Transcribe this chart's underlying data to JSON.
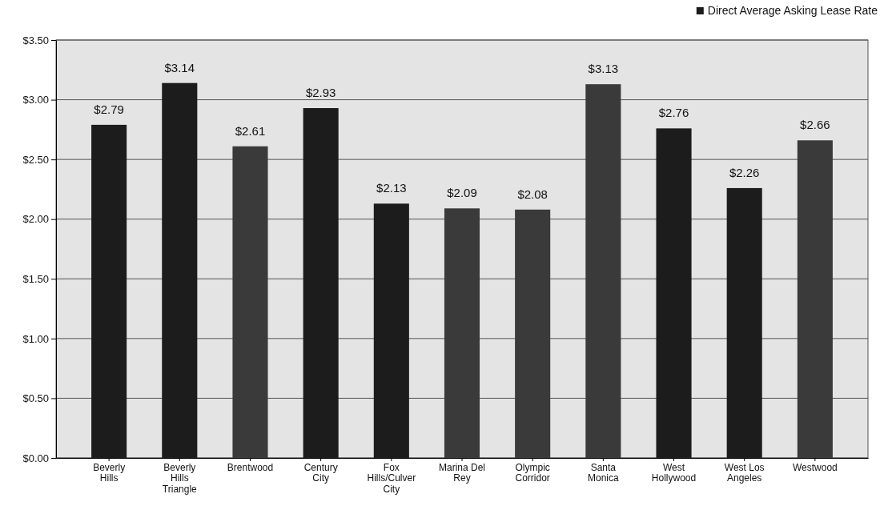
{
  "chart_data": {
    "type": "bar",
    "categories": [
      "Beverly Hills",
      "Beverly Hills Triangle",
      "Brentwood",
      "Century City",
      "Fox Hills/Culver City",
      "Marina Del Rey",
      "Olympic Corridor",
      "Santa Monica",
      "West Hollywood",
      "West Los Angeles",
      "Westwood"
    ],
    "series": [
      {
        "name": "Direct Average Asking Lease Rate",
        "color": "#1c1c1c",
        "colors": [
          "#1c1c1c",
          "#1c1c1c",
          "#3a3a3a",
          "#1c1c1c",
          "#1c1c1c",
          "#3a3a3a",
          "#3a3a3a",
          "#3a3a3a",
          "#1c1c1c",
          "#1c1c1c",
          "#3a3a3a"
        ],
        "values": [
          2.79,
          3.14,
          2.61,
          2.93,
          2.13,
          2.09,
          2.08,
          3.13,
          2.76,
          2.26,
          2.66
        ],
        "value_labels": [
          "$2.79",
          "$3.14",
          "$2.61",
          "$2.93",
          "$2.13",
          "$2.09",
          "$2.08",
          "$3.13",
          "$2.76",
          "$2.26",
          "$2.66"
        ]
      }
    ],
    "ylim": [
      0,
      3.5
    ],
    "yticks": [
      {
        "value": 0,
        "label": "$0.00"
      },
      {
        "value": 0.5,
        "label": "$0.50"
      },
      {
        "value": 1,
        "label": "$1.00"
      },
      {
        "value": 1.5,
        "label": "$1.50"
      },
      {
        "value": 2,
        "label": "$2.00"
      },
      {
        "value": 2.5,
        "label": "$2.50"
      },
      {
        "value": 3,
        "label": "$3.00"
      },
      {
        "value": 3.5,
        "label": "$3.50"
      }
    ],
    "grid": "y",
    "legend": "top right"
  }
}
